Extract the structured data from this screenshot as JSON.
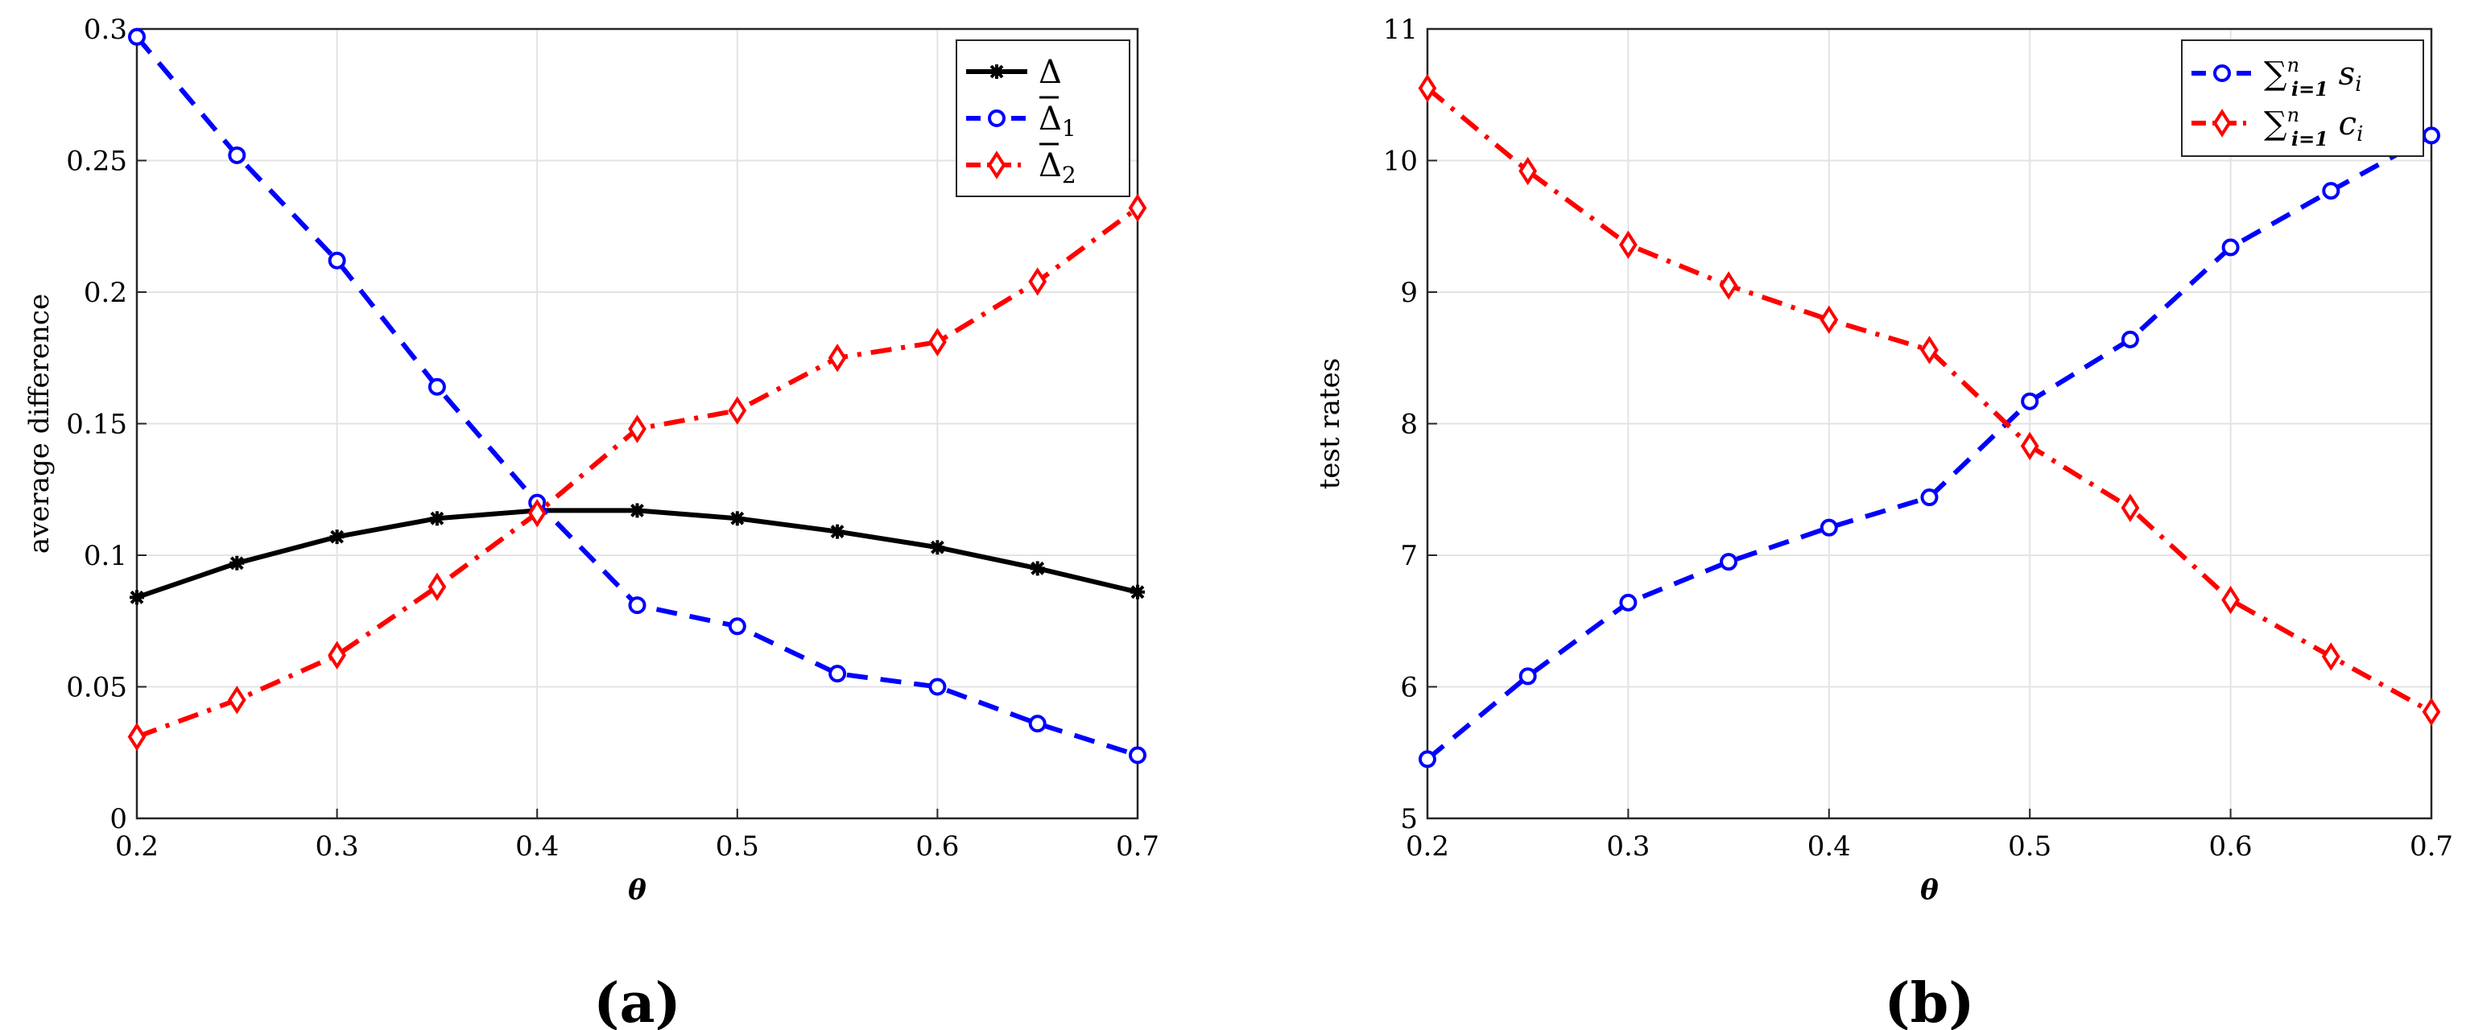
{
  "chart_data": [
    {
      "type": "line",
      "caption": "(a)",
      "xlabel": "θ",
      "ylabel": "average difference",
      "xlim": [
        0.2,
        0.7
      ],
      "ylim": [
        0,
        0.3
      ],
      "xticks": [
        "0.2",
        "0.3",
        "0.4",
        "0.5",
        "0.6",
        "0.7"
      ],
      "yticks": [
        "0",
        "0.05",
        "0.1",
        "0.15",
        "0.2",
        "0.25",
        "0.3"
      ],
      "grid": true,
      "legend_position": "top-right",
      "x": [
        0.2,
        0.25,
        0.3,
        0.35,
        0.4,
        0.45,
        0.5,
        0.55,
        0.6,
        0.65,
        0.7
      ],
      "series": [
        {
          "name": "Δ",
          "name_sub": "",
          "name_bar": false,
          "color": "#000000",
          "dash": "solid",
          "marker": "star",
          "values": [
            0.084,
            0.097,
            0.107,
            0.114,
            0.117,
            0.117,
            0.114,
            0.109,
            0.103,
            0.095,
            0.086
          ]
        },
        {
          "name": "Δ",
          "name_sub": "1",
          "name_bar": true,
          "color": "#0000ff",
          "dash": "dashed",
          "marker": "circle",
          "values": [
            0.297,
            0.252,
            0.212,
            0.164,
            0.12,
            0.081,
            0.073,
            0.055,
            0.05,
            0.036,
            0.024
          ]
        },
        {
          "name": "Δ",
          "name_sub": "2",
          "name_bar": true,
          "color": "#ff0000",
          "dash": "dashdot",
          "marker": "diamond",
          "values": [
            0.031,
            0.045,
            0.062,
            0.088,
            0.116,
            0.148,
            0.155,
            0.175,
            0.181,
            0.204,
            0.232
          ]
        }
      ]
    },
    {
      "type": "line",
      "caption": "(b)",
      "xlabel": "θ",
      "ylabel": "test rates",
      "xlim": [
        0.2,
        0.7
      ],
      "ylim": [
        5,
        11
      ],
      "xticks": [
        "0.2",
        "0.3",
        "0.4",
        "0.5",
        "0.6",
        "0.7"
      ],
      "yticks": [
        "5",
        "6",
        "7",
        "8",
        "9",
        "10",
        "11"
      ],
      "grid": true,
      "legend_position": "top-right",
      "x": [
        0.2,
        0.25,
        0.3,
        0.35,
        0.4,
        0.45,
        0.5,
        0.55,
        0.6,
        0.65,
        0.7
      ],
      "series": [
        {
          "name": "∑",
          "sum_sub": "i=1",
          "sum_sup": "n",
          "term": "s",
          "term_sub": "i",
          "color": "#0000ff",
          "dash": "dashed",
          "marker": "circle",
          "values": [
            5.45,
            6.08,
            6.64,
            6.95,
            7.21,
            7.44,
            8.17,
            8.64,
            9.34,
            9.77,
            10.19
          ]
        },
        {
          "name": "∑",
          "sum_sub": "i=1",
          "sum_sup": "n",
          "term": "c",
          "term_sub": "i",
          "color": "#ff0000",
          "dash": "dashdot",
          "marker": "diamond",
          "values": [
            10.55,
            9.92,
            9.36,
            9.05,
            8.79,
            8.56,
            7.83,
            7.36,
            6.66,
            6.23,
            5.81
          ]
        }
      ]
    }
  ]
}
